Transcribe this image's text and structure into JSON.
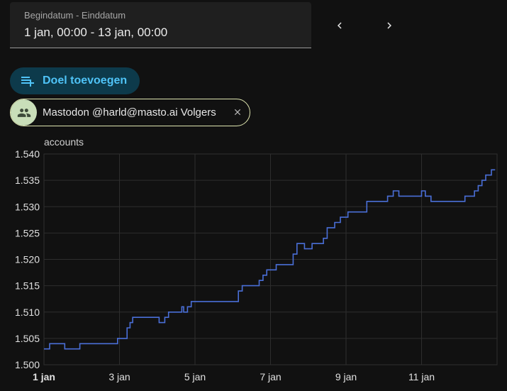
{
  "date_range": {
    "label": "Begindatum - Einddatum",
    "value": "1 jan, 00:00 - 13 jan, 00:00"
  },
  "actions": {
    "add_target_label": "Doel toevoegen"
  },
  "target_chip": {
    "label": "Mastodon @harld@masto.ai Volgers"
  },
  "colors": {
    "line": "#4a6fd8",
    "accent": "#4fc3f7",
    "chip_border": "#dfe6b0",
    "chip_avatar": "#c9deb9"
  },
  "chart_data": {
    "type": "line",
    "unit_label": "accounts",
    "xlim": [
      1,
      13
    ],
    "ylim": [
      1.5,
      1.54
    ],
    "x_ticks": [
      {
        "x": 1,
        "label": "1 jan",
        "bold": true
      },
      {
        "x": 3,
        "label": "3 jan"
      },
      {
        "x": 5,
        "label": "5 jan"
      },
      {
        "x": 7,
        "label": "7 jan"
      },
      {
        "x": 9,
        "label": "9 jan"
      },
      {
        "x": 11,
        "label": "11 jan"
      }
    ],
    "y_ticks": [
      {
        "y": 1.5,
        "label": "1.500"
      },
      {
        "y": 1.505,
        "label": "1.505"
      },
      {
        "y": 1.51,
        "label": "1.510"
      },
      {
        "y": 1.515,
        "label": "1.515"
      },
      {
        "y": 1.52,
        "label": "1.520"
      },
      {
        "y": 1.525,
        "label": "1.525"
      },
      {
        "y": 1.53,
        "label": "1.530"
      },
      {
        "y": 1.535,
        "label": "1.535"
      },
      {
        "y": 1.54,
        "label": "1.540"
      }
    ],
    "series": [
      {
        "step": true,
        "x": [
          1.0,
          1.15,
          1.55,
          1.95,
          2.45,
          2.95,
          3.2,
          3.28,
          3.35,
          3.45,
          3.7,
          4.05,
          4.2,
          4.3,
          4.55,
          4.65,
          4.7,
          4.8,
          4.9,
          5.05,
          5.4,
          6.15,
          6.25,
          6.35,
          6.7,
          6.8,
          6.9,
          7.15,
          7.6,
          7.65,
          7.7,
          7.9,
          8.1,
          8.3,
          8.4,
          8.5,
          8.6,
          8.7,
          8.85,
          9.05,
          9.55,
          9.9,
          10.1,
          10.25,
          10.4,
          10.5,
          10.75,
          11.0,
          11.1,
          11.25,
          11.7,
          12.15,
          12.4,
          12.5,
          12.6,
          12.7,
          12.85,
          12.95
        ],
        "y": [
          1.503,
          1.504,
          1.503,
          1.504,
          1.504,
          1.505,
          1.507,
          1.508,
          1.509,
          1.509,
          1.509,
          1.508,
          1.509,
          1.51,
          1.51,
          1.511,
          1.51,
          1.511,
          1.512,
          1.512,
          1.512,
          1.514,
          1.515,
          1.515,
          1.516,
          1.517,
          1.518,
          1.519,
          1.521,
          1.521,
          1.523,
          1.522,
          1.523,
          1.523,
          1.524,
          1.526,
          1.526,
          1.527,
          1.528,
          1.529,
          1.531,
          1.531,
          1.532,
          1.533,
          1.532,
          1.532,
          1.532,
          1.533,
          1.532,
          1.531,
          1.531,
          1.532,
          1.533,
          1.534,
          1.535,
          1.536,
          1.537,
          1.537
        ]
      }
    ]
  }
}
